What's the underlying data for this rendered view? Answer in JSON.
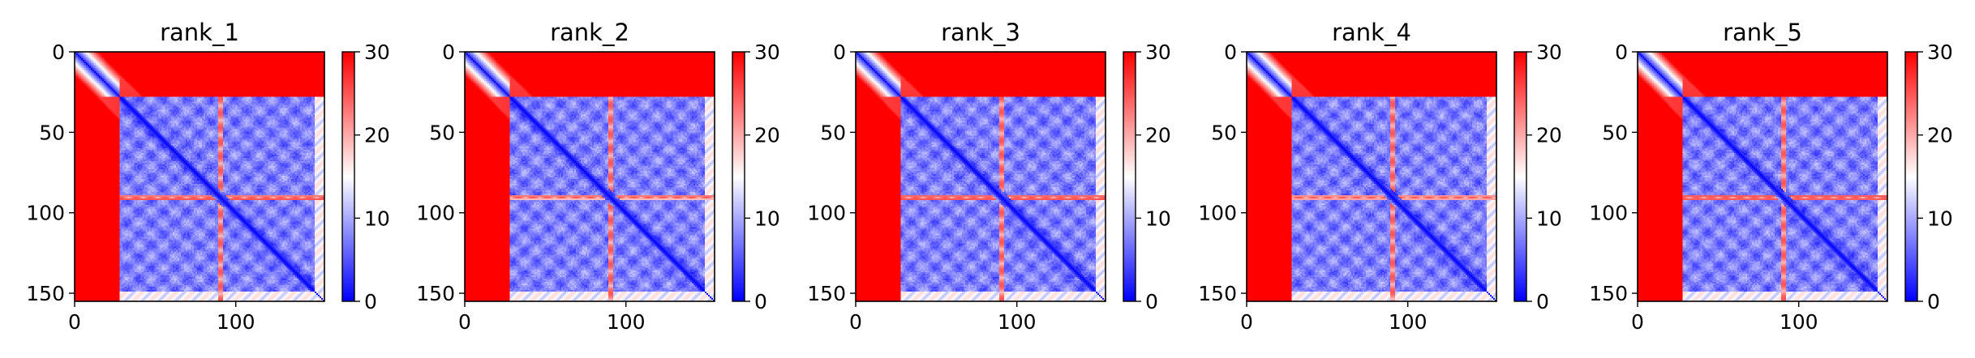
{
  "figure": {
    "colormap": "bwr",
    "colormap_colors": {
      "low": "#0000ff",
      "mid": "#ffffff",
      "high": "#ff0000"
    }
  },
  "chart_data": [
    {
      "type": "heatmap",
      "title": "rank_1",
      "xlabel": "",
      "ylabel": "",
      "xlim": [
        0,
        155
      ],
      "ylim": [
        155,
        0
      ],
      "x_ticks": [
        0,
        100
      ],
      "y_ticks": [
        0,
        50,
        100,
        150
      ],
      "clim": [
        0,
        30
      ],
      "colorbar_ticks": [
        0,
        10,
        20,
        30
      ],
      "matrix_size": 155,
      "description_values": {
        "diagonal": 0,
        "low_region_start": 28,
        "n_term_high_end": 28,
        "red_stripe_row": 90
      }
    },
    {
      "type": "heatmap",
      "title": "rank_2",
      "xlabel": "",
      "ylabel": "",
      "xlim": [
        0,
        155
      ],
      "ylim": [
        155,
        0
      ],
      "x_ticks": [
        0,
        100
      ],
      "y_ticks": [
        0,
        50,
        100,
        150
      ],
      "clim": [
        0,
        30
      ],
      "colorbar_ticks": [
        0,
        10,
        20,
        30
      ],
      "matrix_size": 155,
      "description_values": {
        "diagonal": 0,
        "low_region_start": 28,
        "n_term_high_end": 28,
        "red_stripe_row": 90
      }
    },
    {
      "type": "heatmap",
      "title": "rank_3",
      "xlabel": "",
      "ylabel": "",
      "xlim": [
        0,
        155
      ],
      "ylim": [
        155,
        0
      ],
      "x_ticks": [
        0,
        100
      ],
      "y_ticks": [
        0,
        50,
        100,
        150
      ],
      "clim": [
        0,
        30
      ],
      "colorbar_ticks": [
        0,
        10,
        20,
        30
      ],
      "matrix_size": 155,
      "description_values": {
        "diagonal": 0,
        "low_region_start": 28,
        "n_term_high_end": 28,
        "red_stripe_row": 90
      }
    },
    {
      "type": "heatmap",
      "title": "rank_4",
      "xlabel": "",
      "ylabel": "",
      "xlim": [
        0,
        155
      ],
      "ylim": [
        155,
        0
      ],
      "x_ticks": [
        0,
        100
      ],
      "y_ticks": [
        0,
        50,
        100,
        150
      ],
      "clim": [
        0,
        30
      ],
      "colorbar_ticks": [
        0,
        10,
        20,
        30
      ],
      "matrix_size": 155,
      "description_values": {
        "diagonal": 0,
        "low_region_start": 28,
        "n_term_high_end": 28,
        "red_stripe_row": 90
      }
    },
    {
      "type": "heatmap",
      "title": "rank_5",
      "xlabel": "",
      "ylabel": "",
      "xlim": [
        0,
        155
      ],
      "ylim": [
        155,
        0
      ],
      "x_ticks": [
        0,
        100
      ],
      "y_ticks": [
        0,
        50,
        100,
        150
      ],
      "clim": [
        0,
        30
      ],
      "colorbar_ticks": [
        0,
        10,
        20,
        30
      ],
      "matrix_size": 155,
      "description_values": {
        "diagonal": 0,
        "low_region_start": 28,
        "n_term_high_end": 28,
        "red_stripe_row": 90
      }
    }
  ]
}
